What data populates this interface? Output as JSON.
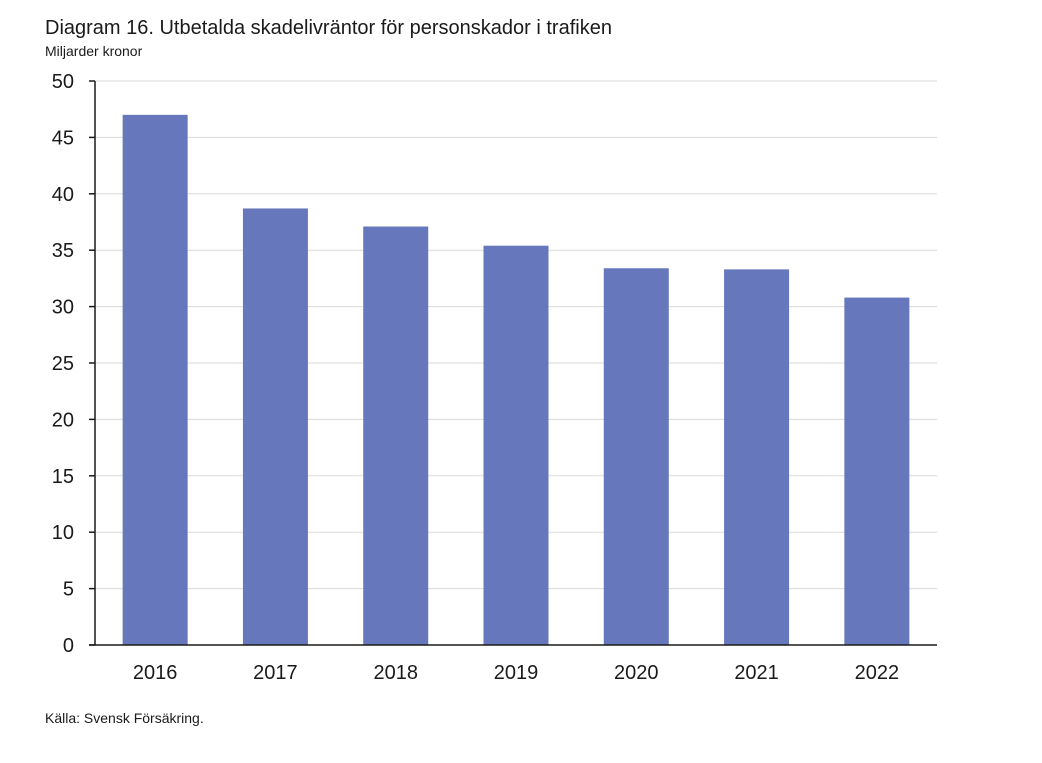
{
  "title": "Diagram 16. Utbetalda skadelivräntor för personskador i trafiken",
  "subtitle": "Miljarder kronor",
  "source": "Källa: Svensk Försäkring.",
  "chart_data": {
    "type": "bar",
    "title": "Diagram 16. Utbetalda skadelivräntor för personskador i trafiken",
    "ylabel": "Miljarder kronor",
    "xlabel": "",
    "categories": [
      "2016",
      "2017",
      "2018",
      "2019",
      "2020",
      "2021",
      "2022"
    ],
    "values": [
      47.0,
      38.7,
      37.1,
      35.4,
      33.4,
      33.3,
      30.8
    ],
    "ylim": [
      0,
      50
    ],
    "yticks": [
      0,
      5,
      10,
      15,
      20,
      25,
      30,
      35,
      40,
      45,
      50
    ],
    "grid": true,
    "bar_color": "#6678bb",
    "grid_color": "#d9d9d9",
    "axis_color": "#1a1a1a"
  }
}
